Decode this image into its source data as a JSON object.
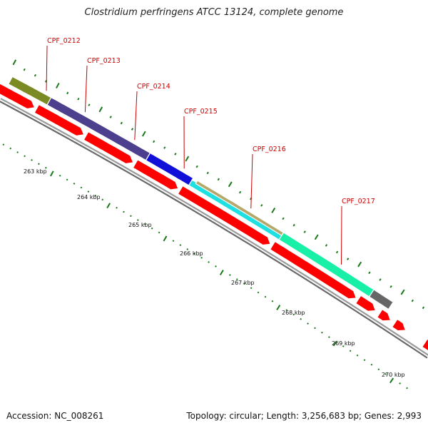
{
  "title": "Clostridium perfringens ATCC 13124, complete genome",
  "footer": {
    "accession": "Accession: NC_008261",
    "stats": "Topology: circular; Length: 3,256,683 bp; Genes: 2,993"
  },
  "colors": {
    "backbone": "#8c8c8c",
    "cds_strand": "#ff0000",
    "label": "#cc0000",
    "tick": "#1a7a1a"
  },
  "kbp_labels": [
    "263 kbp",
    "264 kbp",
    "265 kbp",
    "266 kbp",
    "267 kbp",
    "268 kbp",
    "269 kbp",
    "270 kbp"
  ],
  "genes": [
    {
      "id": "g0212",
      "label": "CPF_0212",
      "color": "#7b8a22"
    },
    {
      "id": "g0213",
      "label": "CPF_0213",
      "color": "#4b3f8e"
    },
    {
      "id": "g0214",
      "label": "CPF_0214",
      "color": "#4b3f8e"
    },
    {
      "id": "g0214b",
      "label": "",
      "color": "#1010d8"
    },
    {
      "id": "g0215",
      "label": "CPF_0215",
      "color": "#1ee0e0"
    },
    {
      "id": "g0216",
      "label": "CPF_0216",
      "color": "#b5a86a"
    },
    {
      "id": "g0217",
      "label": "CPF_0217",
      "color": "#18f0a8"
    },
    {
      "id": "g0218",
      "label": "",
      "color": "#666666"
    },
    {
      "id": "g0219",
      "label": "",
      "color": "#4b3f8e"
    }
  ]
}
